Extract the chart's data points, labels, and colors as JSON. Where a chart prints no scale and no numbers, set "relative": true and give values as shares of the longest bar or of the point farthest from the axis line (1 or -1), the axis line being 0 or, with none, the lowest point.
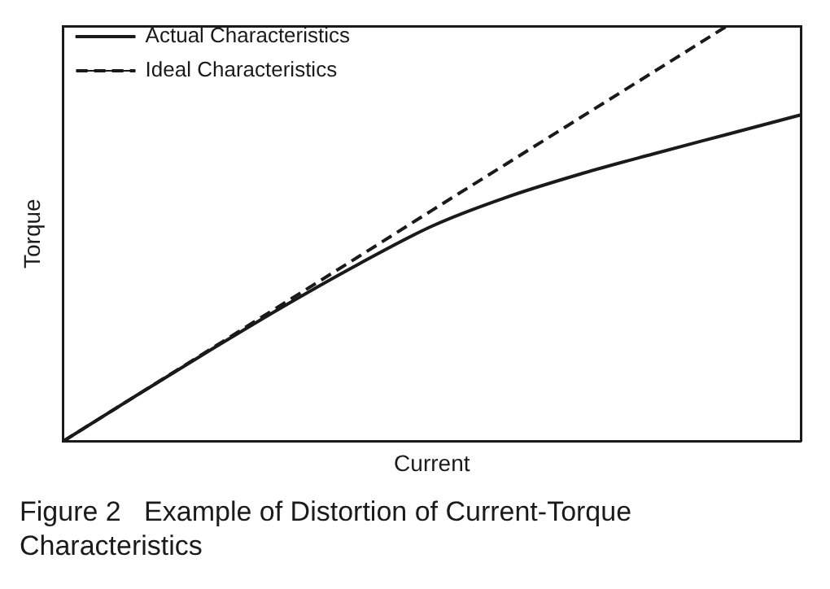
{
  "chart_data": {
    "type": "line",
    "relative": true,
    "xlabel": "Current",
    "ylabel": "Torque",
    "legend": "top left",
    "grid": false,
    "marker": "none",
    "annotations": [
      "Figure 2   Example of Distortion of Current-Torque Characteristics"
    ],
    "categories": [
      null,
      null,
      null,
      null,
      null,
      null,
      null,
      null,
      null,
      null,
      null
    ],
    "series": [
      {
        "name": "Actual Characteristics",
        "color": "#1a1a1a",
        "line_style": "solid",
        "values": [
          0,
          0.111,
          0.22,
          0.326,
          0.426,
          0.518,
          0.587,
          0.643,
          0.692,
          0.739,
          0.786
        ]
      },
      {
        "name": "Ideal Characteristics",
        "color": "#1a1a1a",
        "line_style": "dashed",
        "values": [
          0,
          0.111,
          0.222,
          0.333,
          0.444,
          0.556,
          0.667,
          0.778,
          0.889,
          1.0,
          null
        ]
      }
    ]
  }
}
